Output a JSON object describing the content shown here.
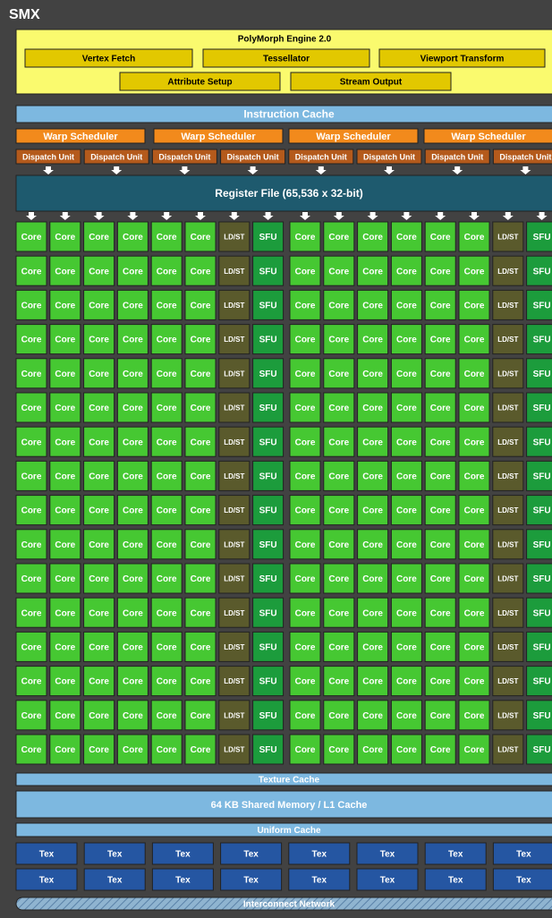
{
  "title": "SMX",
  "polymorph": {
    "title": "PolyMorph Engine 2.0",
    "units": [
      "Vertex Fetch",
      "Tessellator",
      "Viewport Transform",
      "Attribute Setup",
      "Stream Output"
    ]
  },
  "instruction_cache": "Instruction Cache",
  "warp_schedulers": [
    "Warp Scheduler",
    "Warp Scheduler",
    "Warp Scheduler",
    "Warp Scheduler"
  ],
  "dispatch_units": [
    "Dispatch Unit",
    "Dispatch Unit",
    "Dispatch Unit",
    "Dispatch Unit",
    "Dispatch Unit",
    "Dispatch Unit",
    "Dispatch Unit",
    "Dispatch Unit"
  ],
  "register_file": "Register File (65,536 x 32-bit)",
  "execution_units": [
    [
      "Core",
      "Core",
      "Core",
      "Core",
      "Core",
      "Core",
      "LD/ST",
      "SFU",
      "Core",
      "Core",
      "Core",
      "Core",
      "Core",
      "Core",
      "LD/ST",
      "SFU"
    ],
    [
      "Core",
      "Core",
      "Core",
      "Core",
      "Core",
      "Core",
      "LD/ST",
      "SFU",
      "Core",
      "Core",
      "Core",
      "Core",
      "Core",
      "Core",
      "LD/ST",
      "SFU"
    ],
    [
      "Core",
      "Core",
      "Core",
      "Core",
      "Core",
      "Core",
      "LD/ST",
      "SFU",
      "Core",
      "Core",
      "Core",
      "Core",
      "Core",
      "Core",
      "LD/ST",
      "SFU"
    ],
    [
      "Core",
      "Core",
      "Core",
      "Core",
      "Core",
      "Core",
      "LD/ST",
      "SFU",
      "Core",
      "Core",
      "Core",
      "Core",
      "Core",
      "Core",
      "LD/ST",
      "SFU"
    ],
    [
      "Core",
      "Core",
      "Core",
      "Core",
      "Core",
      "Core",
      "LD/ST",
      "SFU",
      "Core",
      "Core",
      "Core",
      "Core",
      "Core",
      "Core",
      "LD/ST",
      "SFU"
    ],
    [
      "Core",
      "Core",
      "Core",
      "Core",
      "Core",
      "Core",
      "LD/ST",
      "SFU",
      "Core",
      "Core",
      "Core",
      "Core",
      "Core",
      "Core",
      "LD/ST",
      "SFU"
    ],
    [
      "Core",
      "Core",
      "Core",
      "Core",
      "Core",
      "Core",
      "LD/ST",
      "SFU",
      "Core",
      "Core",
      "Core",
      "Core",
      "Core",
      "Core",
      "LD/ST",
      "SFU"
    ],
    [
      "Core",
      "Core",
      "Core",
      "Core",
      "Core",
      "Core",
      "LD/ST",
      "SFU",
      "Core",
      "Core",
      "Core",
      "Core",
      "Core",
      "Core",
      "LD/ST",
      "SFU"
    ],
    [
      "Core",
      "Core",
      "Core",
      "Core",
      "Core",
      "Core",
      "LD/ST",
      "SFU",
      "Core",
      "Core",
      "Core",
      "Core",
      "Core",
      "Core",
      "LD/ST",
      "SFU"
    ],
    [
      "Core",
      "Core",
      "Core",
      "Core",
      "Core",
      "Core",
      "LD/ST",
      "SFU",
      "Core",
      "Core",
      "Core",
      "Core",
      "Core",
      "Core",
      "LD/ST",
      "SFU"
    ],
    [
      "Core",
      "Core",
      "Core",
      "Core",
      "Core",
      "Core",
      "LD/ST",
      "SFU",
      "Core",
      "Core",
      "Core",
      "Core",
      "Core",
      "Core",
      "LD/ST",
      "SFU"
    ],
    [
      "Core",
      "Core",
      "Core",
      "Core",
      "Core",
      "Core",
      "LD/ST",
      "SFU",
      "Core",
      "Core",
      "Core",
      "Core",
      "Core",
      "Core",
      "LD/ST",
      "SFU"
    ],
    [
      "Core",
      "Core",
      "Core",
      "Core",
      "Core",
      "Core",
      "LD/ST",
      "SFU",
      "Core",
      "Core",
      "Core",
      "Core",
      "Core",
      "Core",
      "LD/ST",
      "SFU"
    ],
    [
      "Core",
      "Core",
      "Core",
      "Core",
      "Core",
      "Core",
      "LD/ST",
      "SFU",
      "Core",
      "Core",
      "Core",
      "Core",
      "Core",
      "Core",
      "LD/ST",
      "SFU"
    ],
    [
      "Core",
      "Core",
      "Core",
      "Core",
      "Core",
      "Core",
      "LD/ST",
      "SFU",
      "Core",
      "Core",
      "Core",
      "Core",
      "Core",
      "Core",
      "LD/ST",
      "SFU"
    ],
    [
      "Core",
      "Core",
      "Core",
      "Core",
      "Core",
      "Core",
      "LD/ST",
      "SFU",
      "Core",
      "Core",
      "Core",
      "Core",
      "Core",
      "Core",
      "LD/ST",
      "SFU"
    ]
  ],
  "texture_cache": "Texture Cache",
  "shared_memory": "64 KB Shared Memory / L1 Cache",
  "uniform_cache": "Uniform Cache",
  "tex_units": [
    [
      "Tex",
      "Tex",
      "Tex",
      "Tex",
      "Tex",
      "Tex",
      "Tex",
      "Tex"
    ],
    [
      "Tex",
      "Tex",
      "Tex",
      "Tex",
      "Tex",
      "Tex",
      "Tex",
      "Tex"
    ]
  ],
  "interconnect": "Interconnect Network"
}
